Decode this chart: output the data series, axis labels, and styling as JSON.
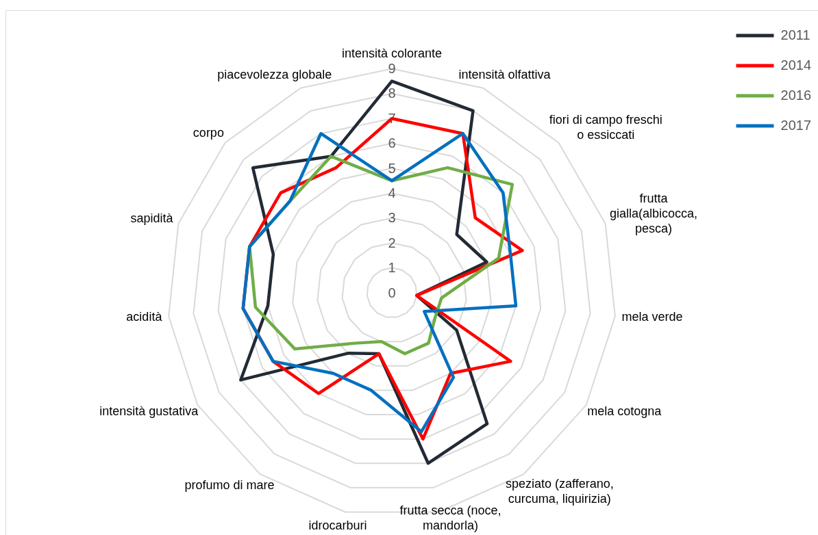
{
  "chart_data": {
    "type": "radar",
    "categories": [
      "intensità colorante",
      "intensità olfattiva",
      "fiori di campo freschi o essiccati",
      "frutta gialla(albicocca, pesca)",
      "mela verde",
      "mela cotogna",
      "speziato (zafferano, curcuma, liquirizia)",
      "frutta secca (noce, mandorla)",
      "idrocarburi",
      "profumo di mare",
      "intensità gustativa",
      "acidità",
      "sapidità",
      "corpo",
      "piacevolezza globale"
    ],
    "series": [
      {
        "name": "2011",
        "color": "#222a35",
        "values": [
          8.5,
          8,
          3.5,
          4,
          1,
          3,
          6.5,
          7,
          2.5,
          3,
          7,
          5,
          5,
          7.5,
          6
        ]
      },
      {
        "name": "2014",
        "color": "#ff0000",
        "values": [
          7,
          7,
          4.5,
          5.5,
          1,
          5.5,
          4,
          6,
          2.5,
          5,
          5.5,
          6,
          6,
          6,
          5.5
        ]
      },
      {
        "name": "2016",
        "color": "#70ad47",
        "values": [
          4.5,
          5.5,
          6.5,
          4.5,
          2,
          2,
          2.5,
          2.5,
          2,
          2.5,
          4.5,
          5.5,
          6,
          5.5,
          6
        ]
      },
      {
        "name": "2017",
        "color": "#0070c0",
        "values": [
          4.5,
          7,
          6,
          5,
          5,
          1.5,
          4.2,
          5.7,
          4,
          4,
          5.5,
          6,
          6,
          5.5,
          7
        ]
      }
    ],
    "ylim": [
      0,
      9
    ],
    "yticks": [
      0,
      1,
      2,
      3,
      4,
      5,
      6,
      7,
      8,
      9
    ],
    "grid": true,
    "legend": "top right",
    "marker": "none",
    "line_style": "solid"
  }
}
